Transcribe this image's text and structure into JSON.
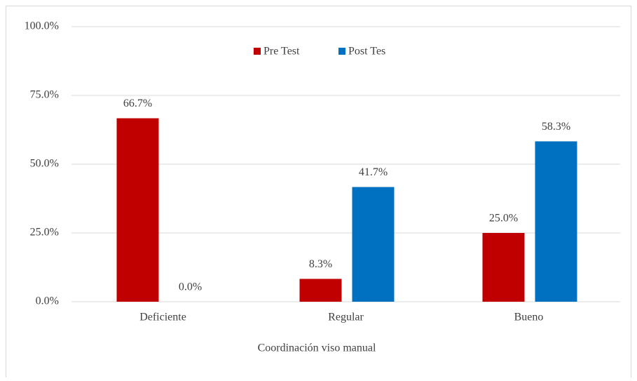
{
  "chart_data": {
    "type": "bar",
    "x_label": "Coordinación viso manual",
    "categories": [
      "Deficiente",
      "Regular",
      "Bueno"
    ],
    "series": [
      {
        "name": "Pre Test",
        "color": "#c00000",
        "values": [
          66.7,
          8.3,
          25.0
        ],
        "value_labels": [
          "66.7%",
          "8.3%",
          "25.0%"
        ]
      },
      {
        "name": "Post Tes",
        "color": "#0070c0",
        "values": [
          0.0,
          41.7,
          58.3
        ],
        "value_labels": [
          "0.0%",
          "41.7%",
          "58.3%"
        ]
      }
    ],
    "ylim": [
      0,
      100
    ],
    "yticks": [
      {
        "value": 0,
        "label": "0.0%"
      },
      {
        "value": 25,
        "label": "25.0%"
      },
      {
        "value": 50,
        "label": "50.0%"
      },
      {
        "value": 75,
        "label": "75.0%"
      },
      {
        "value": 100,
        "label": "100.0%"
      }
    ],
    "grid": true,
    "legend": "top"
  }
}
